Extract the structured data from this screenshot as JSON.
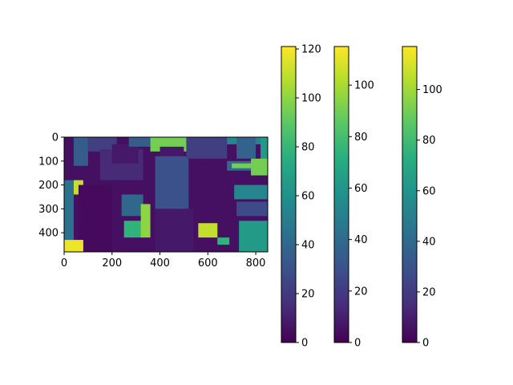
{
  "chart_data": [
    {
      "type": "heatmap",
      "description_kind": "segmentation-label image rendered with viridis colormap",
      "x_ticks": [
        "0",
        "200",
        "400",
        "600",
        "800"
      ],
      "x_tick_values": [
        0,
        200,
        400,
        600,
        800
      ],
      "y_ticks": [
        "0",
        "100",
        "200",
        "300",
        "400"
      ],
      "y_tick_values": [
        0,
        100,
        200,
        300,
        400
      ],
      "xlim": [
        0,
        850
      ],
      "ylim": [
        480,
        0
      ],
      "colormap": "viridis",
      "regions": [
        {
          "x0": 0,
          "y0": 0,
          "x1": 850,
          "y1": 480,
          "v": 5
        },
        {
          "x0": 40,
          "y0": 0,
          "x1": 100,
          "y1": 120,
          "v": 35
        },
        {
          "x0": 100,
          "y0": 0,
          "x1": 220,
          "y1": 60,
          "v": 22
        },
        {
          "x0": 150,
          "y0": 50,
          "x1": 330,
          "y1": 180,
          "v": 14
        },
        {
          "x0": 200,
          "y0": 30,
          "x1": 310,
          "y1": 110,
          "v": 8
        },
        {
          "x0": 270,
          "y0": 0,
          "x1": 360,
          "y1": 40,
          "v": 35
        },
        {
          "x0": 360,
          "y0": 0,
          "x1": 530,
          "y1": 60,
          "v": 95
        },
        {
          "x0": 400,
          "y0": 40,
          "x1": 500,
          "y1": 100,
          "v": 8
        },
        {
          "x0": 380,
          "y0": 80,
          "x1": 520,
          "y1": 300,
          "v": 30
        },
        {
          "x0": 420,
          "y0": 280,
          "x1": 500,
          "y1": 350,
          "v": 30
        },
        {
          "x0": 510,
          "y0": 0,
          "x1": 680,
          "y1": 90,
          "v": 22
        },
        {
          "x0": 520,
          "y0": 110,
          "x1": 700,
          "y1": 480,
          "v": 5
        },
        {
          "x0": 680,
          "y0": 0,
          "x1": 850,
          "y1": 30,
          "v": 55
        },
        {
          "x0": 720,
          "y0": 0,
          "x1": 800,
          "y1": 90,
          "v": 38
        },
        {
          "x0": 820,
          "y0": 0,
          "x1": 850,
          "y1": 100,
          "v": 65
        },
        {
          "x0": 680,
          "y0": 100,
          "x1": 850,
          "y1": 140,
          "v": 42
        },
        {
          "x0": 700,
          "y0": 110,
          "x1": 780,
          "y1": 130,
          "v": 95
        },
        {
          "x0": 780,
          "y0": 90,
          "x1": 850,
          "y1": 160,
          "v": 95
        },
        {
          "x0": 710,
          "y0": 200,
          "x1": 850,
          "y1": 260,
          "v": 55
        },
        {
          "x0": 720,
          "y0": 270,
          "x1": 850,
          "y1": 330,
          "v": 28
        },
        {
          "x0": 730,
          "y0": 350,
          "x1": 850,
          "y1": 480,
          "v": 65
        },
        {
          "x0": 0,
          "y0": 180,
          "x1": 40,
          "y1": 480,
          "v": 45
        },
        {
          "x0": 40,
          "y0": 180,
          "x1": 80,
          "y1": 240,
          "v": 110
        },
        {
          "x0": 60,
          "y0": 200,
          "x1": 200,
          "y1": 480,
          "v": 3
        },
        {
          "x0": 240,
          "y0": 240,
          "x1": 330,
          "y1": 330,
          "v": 40
        },
        {
          "x0": 250,
          "y0": 350,
          "x1": 330,
          "y1": 420,
          "v": 78
        },
        {
          "x0": 320,
          "y0": 280,
          "x1": 360,
          "y1": 420,
          "v": 100
        },
        {
          "x0": 380,
          "y0": 300,
          "x1": 540,
          "y1": 480,
          "v": 8
        },
        {
          "x0": 560,
          "y0": 360,
          "x1": 640,
          "y1": 420,
          "v": 110
        },
        {
          "x0": 0,
          "y0": 430,
          "x1": 80,
          "y1": 480,
          "v": 118
        },
        {
          "x0": 640,
          "y0": 420,
          "x1": 690,
          "y1": 450,
          "v": 78
        }
      ]
    },
    {
      "type": "colorbar",
      "colormap": "viridis",
      "range": [
        0,
        121
      ],
      "ticks": [
        "0",
        "20",
        "40",
        "60",
        "80",
        "100",
        "120"
      ],
      "tick_values": [
        0,
        20,
        40,
        60,
        80,
        100,
        120
      ]
    },
    {
      "type": "colorbar",
      "colormap": "viridis",
      "range": [
        0,
        115
      ],
      "ticks": [
        "0",
        "20",
        "40",
        "60",
        "80",
        "100"
      ],
      "tick_values": [
        0,
        20,
        40,
        60,
        80,
        100
      ]
    },
    {
      "type": "colorbar",
      "colormap": "viridis",
      "range": [
        0,
        117
      ],
      "ticks": [
        "0",
        "20",
        "40",
        "60",
        "80",
        "100"
      ],
      "tick_values": [
        0,
        20,
        40,
        60,
        80,
        100
      ]
    }
  ]
}
